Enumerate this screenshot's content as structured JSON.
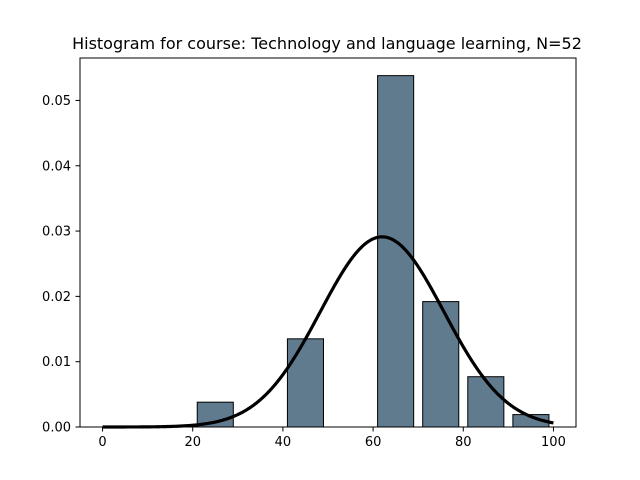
{
  "chart_data": {
    "type": "bar",
    "title": "Histogram for course: Technology and language learning,  N=52",
    "xlabel": "",
    "ylabel": "",
    "xlim": [
      -5,
      105
    ],
    "ylim": [
      0,
      0.0565
    ],
    "x_ticks": [
      0,
      20,
      40,
      60,
      80,
      100
    ],
    "y_ticks": [
      0.0,
      0.01,
      0.02,
      0.03,
      0.04,
      0.05
    ],
    "y_tick_labels": [
      "0.00",
      "0.01",
      "0.02",
      "0.03",
      "0.04",
      "0.05"
    ],
    "bar_width": 8,
    "bins": [
      {
        "x_start": 21,
        "value": 0.0038
      },
      {
        "x_start": 41,
        "value": 0.0135
      },
      {
        "x_start": 61,
        "value": 0.0538
      },
      {
        "x_start": 71,
        "value": 0.0192
      },
      {
        "x_start": 81,
        "value": 0.0077
      },
      {
        "x_start": 91,
        "value": 0.0019
      }
    ],
    "density_curve": {
      "type": "normal",
      "mean": 62,
      "sd": 13.7
    },
    "curve_x_range": [
      0,
      100
    ],
    "bar_color": "#607a8e",
    "bar_edge_color": "#000000",
    "curve_color": "#000000",
    "grid": false
  }
}
